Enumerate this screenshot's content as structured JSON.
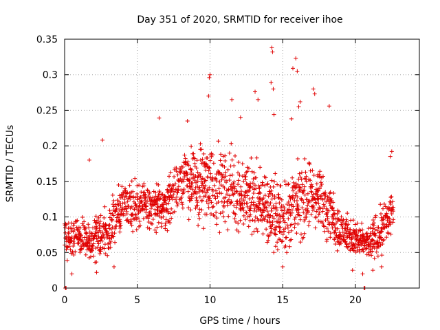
{
  "chart_data": {
    "type": "scatter",
    "title": "Day 351 of 2020, SRMTID for receiver ihoe",
    "xlabel": "GPS time / hours",
    "ylabel": "SRMTID / TECUs",
    "xlim": [
      0,
      24.4
    ],
    "ylim": [
      0,
      0.35
    ],
    "xticks": [
      0,
      5,
      10,
      15,
      20
    ],
    "xtick_labels": [
      "0",
      "5",
      "10",
      "15",
      "20"
    ],
    "yticks": [
      0,
      0.05,
      0.1,
      0.15,
      0.2,
      0.25,
      0.3,
      0.35
    ],
    "ytick_labels": [
      "0",
      "0.05",
      "0.1",
      "0.15",
      "0.2",
      "0.25",
      "0.3",
      "0.35"
    ],
    "grid": true,
    "marker": "+",
    "point_color": "#e00000",
    "sample_interval_hours": 0.025,
    "series": [
      {
        "name": "SRMTID",
        "envelope": {
          "x": [
            0.0,
            1.0,
            2.0,
            3.0,
            4.0,
            5.0,
            6.0,
            7.0,
            8.0,
            9.0,
            10.0,
            11.0,
            12.0,
            13.0,
            14.0,
            15.0,
            16.0,
            17.0,
            18.0,
            19.0,
            20.0,
            21.0,
            22.0,
            22.6
          ],
          "mid": [
            0.07,
            0.075,
            0.065,
            0.08,
            0.12,
            0.12,
            0.11,
            0.12,
            0.15,
            0.15,
            0.15,
            0.14,
            0.13,
            0.13,
            0.11,
            0.1,
            0.12,
            0.13,
            0.12,
            0.08,
            0.07,
            0.06,
            0.09,
            0.11
          ],
          "spread": [
            0.025,
            0.03,
            0.03,
            0.035,
            0.035,
            0.035,
            0.035,
            0.035,
            0.04,
            0.05,
            0.055,
            0.055,
            0.055,
            0.055,
            0.05,
            0.05,
            0.055,
            0.05,
            0.045,
            0.03,
            0.025,
            0.025,
            0.035,
            0.035
          ]
        },
        "peaks": [
          {
            "x": 14.25,
            "y": 0.338
          },
          {
            "x": 14.3,
            "y": 0.332
          },
          {
            "x": 15.9,
            "y": 0.323
          },
          {
            "x": 15.7,
            "y": 0.309
          },
          {
            "x": 16.0,
            "y": 0.305
          },
          {
            "x": 10.0,
            "y": 0.3
          },
          {
            "x": 9.95,
            "y": 0.296
          },
          {
            "x": 14.2,
            "y": 0.289
          },
          {
            "x": 14.35,
            "y": 0.28
          },
          {
            "x": 17.1,
            "y": 0.28
          },
          {
            "x": 17.2,
            "y": 0.273
          },
          {
            "x": 13.1,
            "y": 0.276
          },
          {
            "x": 13.3,
            "y": 0.265
          },
          {
            "x": 11.5,
            "y": 0.265
          },
          {
            "x": 9.9,
            "y": 0.27
          },
          {
            "x": 16.2,
            "y": 0.262
          },
          {
            "x": 16.1,
            "y": 0.255
          },
          {
            "x": 18.2,
            "y": 0.256
          },
          {
            "x": 6.5,
            "y": 0.239
          },
          {
            "x": 8.45,
            "y": 0.235
          },
          {
            "x": 2.6,
            "y": 0.208
          },
          {
            "x": 22.5,
            "y": 0.192
          },
          {
            "x": 22.4,
            "y": 0.185
          },
          {
            "x": 1.7,
            "y": 0.18
          },
          {
            "x": 14.4,
            "y": 0.244
          },
          {
            "x": 12.1,
            "y": 0.24
          },
          {
            "x": 15.6,
            "y": 0.238
          }
        ],
        "lows": [
          {
            "x": 0.5,
            "y": 0.02
          },
          {
            "x": 2.2,
            "y": 0.022
          },
          {
            "x": 20.5,
            "y": 0.02
          },
          {
            "x": 21.2,
            "y": 0.025
          },
          {
            "x": 3.4,
            "y": 0.03
          },
          {
            "x": 19.8,
            "y": 0.025
          },
          {
            "x": 21.8,
            "y": 0.03
          },
          {
            "x": 15.0,
            "y": 0.03
          }
        ],
        "zero_points": [
          {
            "x": 0.05,
            "y": 0.0
          },
          {
            "x": 0.1,
            "y": 0.0
          },
          {
            "x": 20.6,
            "y": 0.0
          },
          {
            "x": 20.65,
            "y": 0.0
          }
        ]
      }
    ]
  }
}
